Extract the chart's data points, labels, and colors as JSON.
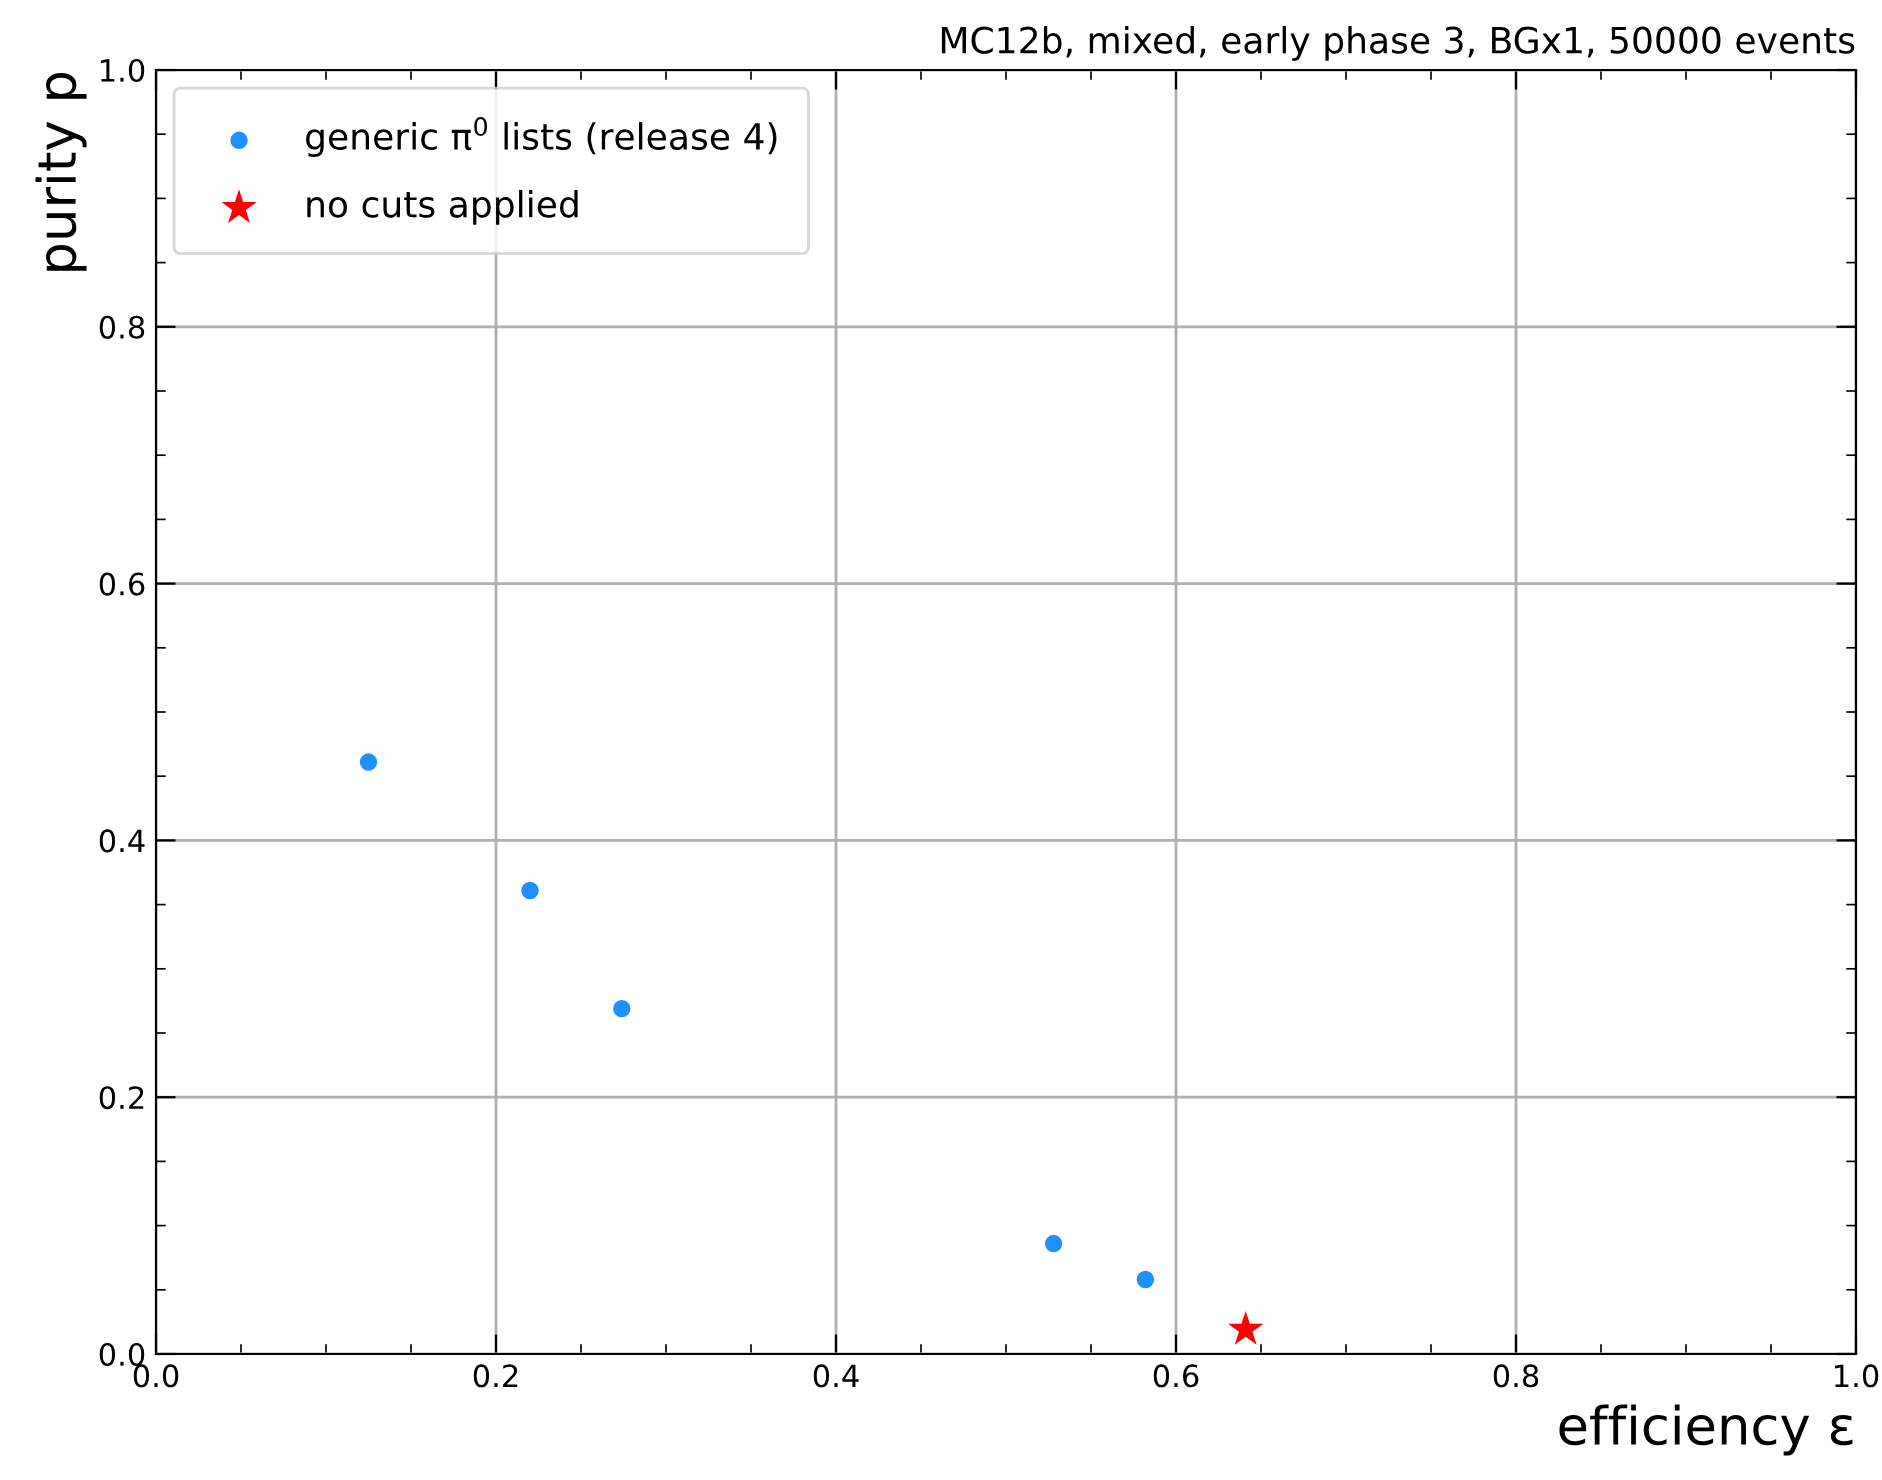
{
  "chart_data": {
    "type": "scatter",
    "title": "MC12b, mixed, early phase 3, BGx1, 50000 events",
    "xlabel": "efficiency ε",
    "ylabel": "purity p",
    "series": [
      {
        "name": "generic π$^{0}$ lists (release 4)",
        "color": "#1e90ff",
        "marker": "circle",
        "x": [
          0.125,
          0.22,
          0.274,
          0.528,
          0.582
        ],
        "values": [
          0.461,
          0.361,
          0.269,
          0.086,
          0.058
        ]
      },
      {
        "name": "no cuts applied",
        "color": "#ff0000",
        "marker": "star",
        "x": [
          0.641
        ],
        "values": [
          0.019
        ]
      }
    ],
    "xlim": [
      0,
      1
    ],
    "ylim": [
      0,
      1
    ],
    "xticks": [
      {
        "value": 0,
        "label": "0.0"
      },
      0.2,
      0.4,
      0.6,
      0.8,
      {
        "value": 1,
        "label": "1.0"
      }
    ],
    "yticks": [
      {
        "value": 0,
        "label": "0.0"
      },
      0.2,
      0.4,
      0.6,
      0.8,
      {
        "value": 1,
        "label": "1.0"
      }
    ],
    "grid": true,
    "legend": "top left"
  }
}
